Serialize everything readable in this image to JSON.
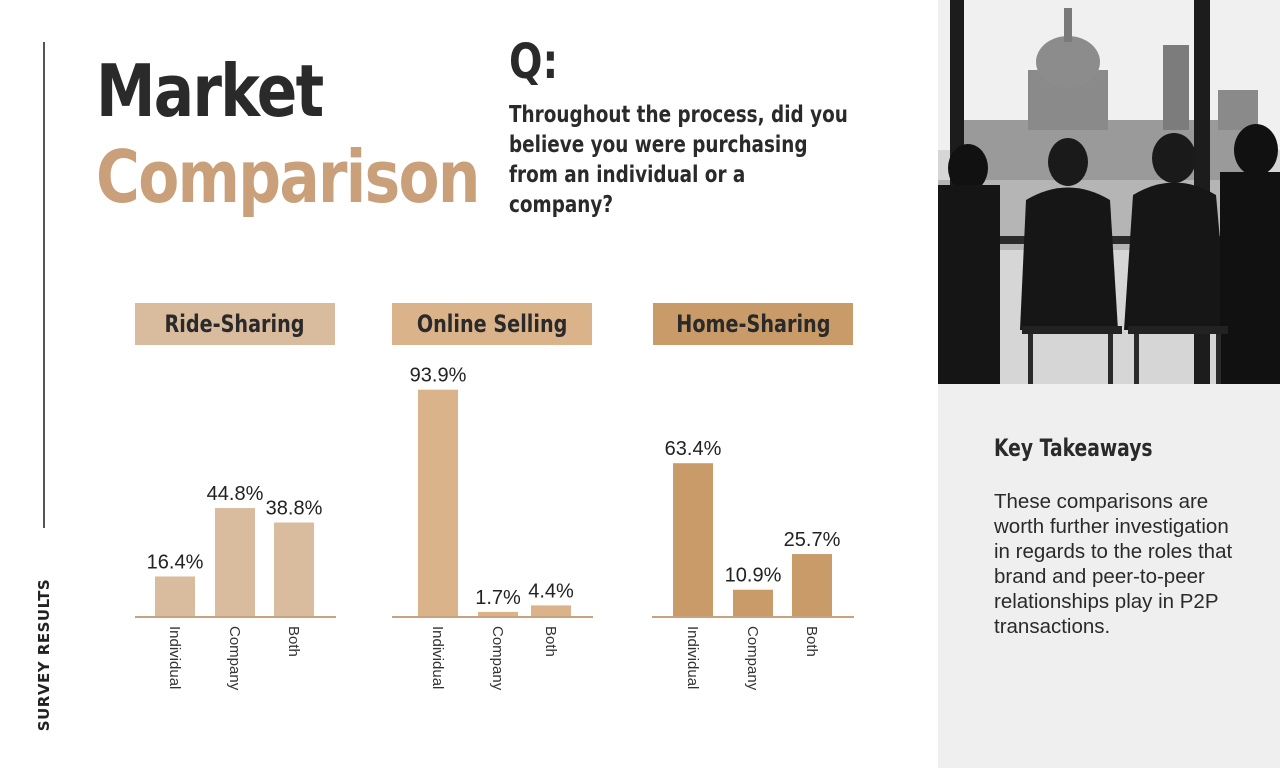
{
  "page": {
    "side_label": "SURVEY RESULTS",
    "title_line1": "Market",
    "title_line2": "Comparison",
    "question_mark": "Q:",
    "question": "Throughout the process, did you believe you were purchasing from an individual or a company?"
  },
  "takeaways": {
    "title": "Key Takeaways",
    "body": "These comparisons are worth further investigation in regards to the roles that brand and peer-to-peer relationships play in P2P transactions."
  },
  "chart_data": [
    {
      "type": "bar",
      "title": "Ride-Sharing",
      "categories": [
        "Individual",
        "Company",
        "Both"
      ],
      "values": [
        16.4,
        44.8,
        38.8
      ],
      "labels": [
        "16.4%",
        "44.8%",
        "38.8%"
      ],
      "ylim": [
        0,
        100
      ],
      "color": "#d9bc9e"
    },
    {
      "type": "bar",
      "title": "Online Selling",
      "categories": [
        "Individual",
        "Company",
        "Both"
      ],
      "values": [
        93.9,
        1.7,
        4.4
      ],
      "labels": [
        "93.9%",
        "1.7%",
        "4.4%"
      ],
      "ylim": [
        0,
        100
      ],
      "color": "#dbb38a"
    },
    {
      "type": "bar",
      "title": "Home-Sharing",
      "categories": [
        "Individual",
        "Company",
        "Both"
      ],
      "values": [
        63.4,
        10.9,
        25.7
      ],
      "labels": [
        "63.4%",
        "10.9%",
        "25.7%"
      ],
      "ylim": [
        0,
        100
      ],
      "color": "#c99b68"
    }
  ]
}
